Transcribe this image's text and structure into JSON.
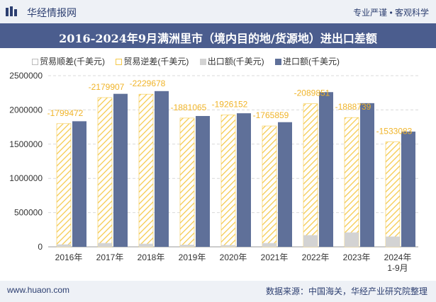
{
  "header": {
    "logo_text": "华经情报网",
    "tagline": "专业严谨 • 客观科学"
  },
  "title": "2016-2024年9月满洲里市（境内目的地/货源地）进出口差额",
  "legend": {
    "trade_balance": "贸易顺差(千美元)",
    "trade_deficit": "贸易逆差(千美元)",
    "exports": "出口额(千美元)",
    "imports": "进口额(千美元)"
  },
  "chart_data": {
    "type": "bar",
    "categories": [
      "2016年",
      "2017年",
      "2018年",
      "2019年",
      "2020年",
      "2021年",
      "2022年",
      "2023年",
      "2024年\n1-9月"
    ],
    "series": [
      {
        "name": "贸易逆差(千美元)",
        "values": [
          -1799472,
          -2179907,
          -2229678,
          -1881065,
          -1926152,
          -1765859,
          -2089851,
          -1888739,
          -1533083
        ],
        "color": "#f5c94a",
        "pattern": "hatched"
      },
      {
        "name": "出口额(千美元)",
        "values": [
          35000,
          55000,
          45000,
          30000,
          25000,
          55000,
          170000,
          210000,
          150000
        ],
        "color": "#d3d3d3"
      },
      {
        "name": "进口额(千美元)",
        "values": [
          1834472,
          2234907,
          2274678,
          1911065,
          1951152,
          1820859,
          2259851,
          2098739,
          1683083
        ],
        "color": "#5f7099"
      }
    ],
    "data_labels": [
      "-1799472",
      "-2179907",
      "-2229678",
      "-1881065",
      "-1926152",
      "-1765859",
      "-2089851",
      "-1888739",
      "-1533083"
    ],
    "ylim": [
      0,
      2500000
    ],
    "yticks": [
      "0",
      "500000",
      "1000000",
      "1500000",
      "2000000",
      "2500000"
    ],
    "grid": "horizontal dashed",
    "legend_position": "top"
  },
  "footer": {
    "website": "www.huaon.com",
    "source": "数据来源：中国海关，华经产业研究院整理"
  }
}
